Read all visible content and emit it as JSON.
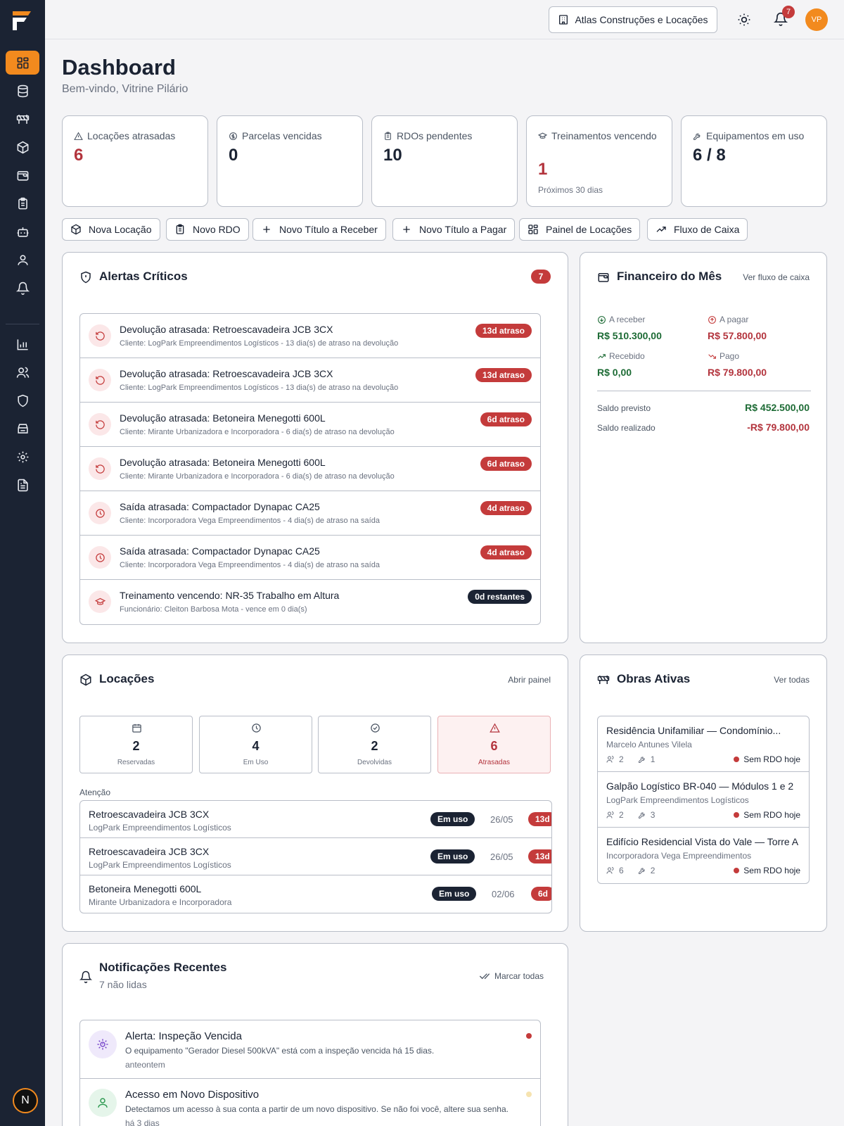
{
  "colors": {
    "accent": "#f28a1e",
    "sidebar": "#1b2333",
    "danger": "#c43b3b",
    "success": "#1d6b35"
  },
  "sidebar": {
    "items": [
      {
        "name": "dashboard-icon",
        "active": true
      },
      {
        "name": "database-icon"
      },
      {
        "name": "barrier-icon"
      },
      {
        "name": "box-icon"
      },
      {
        "name": "wallet-icon"
      },
      {
        "name": "clipboard-icon"
      },
      {
        "name": "bot-icon"
      },
      {
        "name": "user-icon"
      },
      {
        "name": "bell-icon"
      },
      {
        "name": "bar-chart-icon"
      },
      {
        "name": "users-icon"
      },
      {
        "name": "shield-icon"
      },
      {
        "name": "archive-icon"
      },
      {
        "name": "gear-icon"
      },
      {
        "name": "file-text-icon"
      }
    ],
    "bottom_badge": "N"
  },
  "topbar": {
    "company": "Atlas Construções e Locações",
    "notifications_count": "7",
    "avatar_initials": "VP"
  },
  "header": {
    "title": "Dashboard",
    "subtitle": "Bem-vindo, Vitrine Pilário"
  },
  "stats": [
    {
      "label": "Locações atrasadas",
      "value": "6",
      "icon": "alert-triangle-icon",
      "tone": "red"
    },
    {
      "label": "Parcelas vencidas",
      "value": "0",
      "icon": "dollar-circle-icon"
    },
    {
      "label": "RDOs pendentes",
      "value": "10",
      "icon": "clipboard-icon"
    },
    {
      "label": "Treinamentos vencendo",
      "value": "1",
      "hint": "Próximos 30 dias",
      "icon": "graduation-cap-icon",
      "tone": "red"
    },
    {
      "label": "Equipamentos em uso",
      "value": "6 / 8",
      "icon": "wrench-icon"
    }
  ],
  "quick_actions": [
    {
      "label": "Nova Locação",
      "icon": "box-icon"
    },
    {
      "label": "Novo RDO",
      "icon": "clipboard-icon"
    },
    {
      "label": "Novo Título a Receber",
      "icon": "plus-icon"
    },
    {
      "label": "Novo Título a Pagar",
      "icon": "plus-icon"
    },
    {
      "label": "Painel de Locações",
      "icon": "dashboard-icon"
    },
    {
      "label": "Fluxo de Caixa",
      "icon": "trending-up-icon"
    }
  ],
  "alerts": {
    "title": "Alertas Críticos",
    "count": "7",
    "items": [
      {
        "title": "Devolução atrasada: Retroescavadeira JCB 3CX",
        "sub": "Cliente: LogPark Empreendimentos Logísticos - 13 dia(s) de atraso na devolução",
        "badge": "13d atraso",
        "icon": "rotate-ccw-icon"
      },
      {
        "title": "Devolução atrasada: Retroescavadeira JCB 3CX",
        "sub": "Cliente: LogPark Empreendimentos Logísticos - 13 dia(s) de atraso na devolução",
        "badge": "13d atraso",
        "icon": "rotate-ccw-icon"
      },
      {
        "title": "Devolução atrasada: Betoneira Menegotti 600L",
        "sub": "Cliente: Mirante Urbanizadora e Incorporadora - 6 dia(s) de atraso na devolução",
        "badge": "6d atraso",
        "icon": "rotate-ccw-icon"
      },
      {
        "title": "Devolução atrasada: Betoneira Menegotti 600L",
        "sub": "Cliente: Mirante Urbanizadora e Incorporadora - 6 dia(s) de atraso na devolução",
        "badge": "6d atraso",
        "icon": "rotate-ccw-icon"
      },
      {
        "title": "Saída atrasada: Compactador Dynapac CA25",
        "sub": "Cliente: Incorporadora Vega Empreendimentos - 4 dia(s) de atraso na saída",
        "badge": "4d atraso",
        "icon": "clock-icon"
      },
      {
        "title": "Saída atrasada: Compactador Dynapac CA25",
        "sub": "Cliente: Incorporadora Vega Empreendimentos - 4 dia(s) de atraso na saída",
        "badge": "4d atraso",
        "icon": "clock-icon"
      },
      {
        "title": "Treinamento vencendo: NR-35 Trabalho em Altura",
        "sub": "Funcionário: Cleiton Barbosa Mota - vence em 0 dia(s)",
        "badge": "0d restantes",
        "icon": "graduation-cap-icon",
        "dark": true
      }
    ]
  },
  "financeiro": {
    "title": "Financeiro do Mês",
    "link": "Ver fluxo de caixa",
    "a_receber_label": "A receber",
    "a_receber_value": "R$ 510.300,00",
    "a_pagar_label": "A pagar",
    "a_pagar_value": "R$ 57.800,00",
    "recebido_label": "Recebido",
    "recebido_value": "R$ 0,00",
    "pago_label": "Pago",
    "pago_value": "R$ 79.800,00",
    "saldo_previsto_label": "Saldo previsto",
    "saldo_previsto_value": "R$ 452.500,00",
    "saldo_realizado_label": "Saldo realizado",
    "saldo_realizado_value": "-R$ 79.800,00"
  },
  "locacoes": {
    "title": "Locações",
    "link": "Abrir painel",
    "summary": [
      {
        "value": "2",
        "label": "Reservadas",
        "icon": "calendar-icon"
      },
      {
        "value": "4",
        "label": "Em Uso",
        "icon": "clock-icon"
      },
      {
        "value": "2",
        "label": "Devolvidas",
        "icon": "check-circle-icon"
      },
      {
        "value": "6",
        "label": "Atrasadas",
        "icon": "alert-triangle-icon",
        "warn": true
      }
    ],
    "attention_label": "Atenção",
    "attention": [
      {
        "title": "Retroescavadeira JCB 3CX",
        "sub": "LogPark Empreendimentos Logísticos",
        "status": "Em uso",
        "date": "26/05",
        "days": "13d"
      },
      {
        "title": "Retroescavadeira JCB 3CX",
        "sub": "LogPark Empreendimentos Logísticos",
        "status": "Em uso",
        "date": "26/05",
        "days": "13d"
      },
      {
        "title": "Betoneira Menegotti 600L",
        "sub": "Mirante Urbanizadora e Incorporadora",
        "status": "Em uso",
        "date": "02/06",
        "days": "6d"
      }
    ]
  },
  "obras": {
    "title": "Obras Ativas",
    "link": "Ver todas",
    "items": [
      {
        "title": "Residência Unifamiliar — Condomínio...",
        "sub": "Marcelo Antunes Vilela",
        "people": "2",
        "tools": "1",
        "status": "Sem RDO hoje"
      },
      {
        "title": "Galpão Logístico BR-040 — Módulos 1 e 2",
        "sub": "LogPark Empreendimentos Logísticos",
        "people": "2",
        "tools": "3",
        "status": "Sem RDO hoje"
      },
      {
        "title": "Edifício Residencial Vista do Vale — Torre A",
        "sub": "Incorporadora Vega Empreendimentos",
        "people": "6",
        "tools": "2",
        "status": "Sem RDO hoje"
      }
    ]
  },
  "notificacoes": {
    "title": "Notificações Recentes",
    "subtitle": "7 não lidas",
    "mark_all": "Marcar todas",
    "items": [
      {
        "title": "Alerta: Inspeção Vencida",
        "body": "O equipamento \"Gerador Diesel 500kVA\" está com a inspeção vencida há 15 dias.",
        "time": "anteontem",
        "icon": "gear-alert-icon",
        "dot_color": "#c43b3b"
      },
      {
        "title": "Acesso em Novo Dispositivo",
        "body": "Detectamos um acesso à sua conta a partir de um novo dispositivo. Se não foi você, altere sua senha.",
        "time": "há 3 dias",
        "icon": "user-icon",
        "dot_color": "#f6e3b0"
      }
    ]
  }
}
